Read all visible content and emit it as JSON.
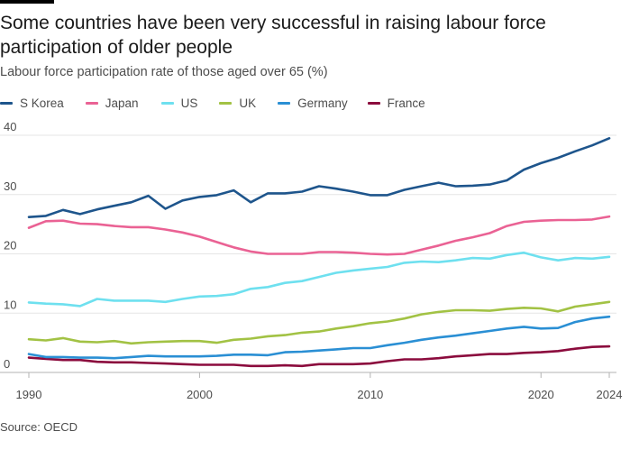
{
  "title": "Some countries have been very successful in raising labour force participation of older people",
  "subtitle": "Labour force participation rate of those aged over 65 (%)",
  "source": "Source: OECD",
  "chart_data": {
    "type": "line",
    "title": "Some countries have been very successful in raising labour force participation of older people",
    "subtitle": "Labour force participation rate of those aged over 65 (%)",
    "xlabel": "",
    "ylabel": "",
    "xlim": [
      1990,
      2024
    ],
    "ylim": [
      0,
      40
    ],
    "x_ticks": [
      "1990",
      "2000",
      "2010",
      "2020",
      "2024"
    ],
    "y_ticks": [
      "0",
      "10",
      "20",
      "30",
      "40"
    ],
    "grid": "horizontal",
    "legend_position": "top",
    "x": [
      1990,
      1991,
      1992,
      1993,
      1994,
      1995,
      1996,
      1997,
      1998,
      1999,
      2000,
      2001,
      2002,
      2003,
      2004,
      2005,
      2006,
      2007,
      2008,
      2009,
      2010,
      2011,
      2012,
      2013,
      2014,
      2015,
      2016,
      2017,
      2018,
      2019,
      2020,
      2021,
      2022,
      2023,
      2024
    ],
    "series": [
      {
        "name": "S Korea",
        "color": "#1e558c",
        "values": [
          26.2,
          26.4,
          27.4,
          26.7,
          27.5,
          28.1,
          28.7,
          29.8,
          27.6,
          29.0,
          29.6,
          29.9,
          30.7,
          28.7,
          30.2,
          30.2,
          30.5,
          31.4,
          31.0,
          30.5,
          29.9,
          29.9,
          30.8,
          31.4,
          32.0,
          31.4,
          31.5,
          31.7,
          32.4,
          34.2,
          35.3,
          36.2,
          37.3,
          38.3,
          39.5
        ]
      },
      {
        "name": "Japan",
        "color": "#ea6294",
        "values": [
          24.4,
          25.5,
          25.6,
          25.1,
          25.0,
          24.7,
          24.5,
          24.5,
          24.1,
          23.6,
          22.9,
          22.0,
          21.1,
          20.4,
          20.0,
          20.0,
          20.0,
          20.3,
          20.3,
          20.2,
          20.0,
          19.9,
          20.0,
          20.7,
          21.4,
          22.2,
          22.8,
          23.5,
          24.7,
          25.4,
          25.6,
          25.7,
          25.7,
          25.8,
          26.3
        ]
      },
      {
        "name": "US",
        "color": "#6ee0ef",
        "values": [
          11.8,
          11.6,
          11.5,
          11.2,
          12.4,
          12.1,
          12.1,
          12.1,
          11.9,
          12.4,
          12.8,
          12.9,
          13.2,
          14.1,
          14.4,
          15.1,
          15.4,
          16.1,
          16.8,
          17.2,
          17.5,
          17.8,
          18.5,
          18.7,
          18.6,
          18.9,
          19.3,
          19.2,
          19.8,
          20.2,
          19.4,
          18.9,
          19.3,
          19.2,
          19.5
        ]
      },
      {
        "name": "UK",
        "color": "#a2c244",
        "values": [
          5.6,
          5.4,
          5.8,
          5.2,
          5.1,
          5.3,
          4.9,
          5.1,
          5.2,
          5.3,
          5.3,
          5.0,
          5.5,
          5.7,
          6.1,
          6.3,
          6.7,
          6.9,
          7.4,
          7.8,
          8.3,
          8.6,
          9.1,
          9.8,
          10.2,
          10.5,
          10.5,
          10.4,
          10.7,
          10.9,
          10.8,
          10.3,
          11.1,
          11.5,
          11.9
        ]
      },
      {
        "name": "Germany",
        "color": "#2a8fd4",
        "values": [
          3.1,
          2.6,
          2.6,
          2.5,
          2.5,
          2.4,
          2.6,
          2.8,
          2.7,
          2.7,
          2.7,
          2.8,
          3.0,
          3.0,
          2.9,
          3.4,
          3.5,
          3.7,
          3.9,
          4.1,
          4.1,
          4.6,
          5.0,
          5.5,
          5.9,
          6.2,
          6.6,
          7.0,
          7.4,
          7.7,
          7.4,
          7.5,
          8.5,
          9.1,
          9.4
        ]
      },
      {
        "name": "France",
        "color": "#8b0b3d",
        "values": [
          2.5,
          2.3,
          2.1,
          2.1,
          1.8,
          1.7,
          1.7,
          1.6,
          1.5,
          1.4,
          1.3,
          1.3,
          1.3,
          1.1,
          1.1,
          1.2,
          1.1,
          1.4,
          1.4,
          1.4,
          1.5,
          1.9,
          2.2,
          2.2,
          2.4,
          2.7,
          2.9,
          3.1,
          3.1,
          3.3,
          3.4,
          3.6,
          4.0,
          4.3,
          4.4
        ]
      }
    ]
  }
}
